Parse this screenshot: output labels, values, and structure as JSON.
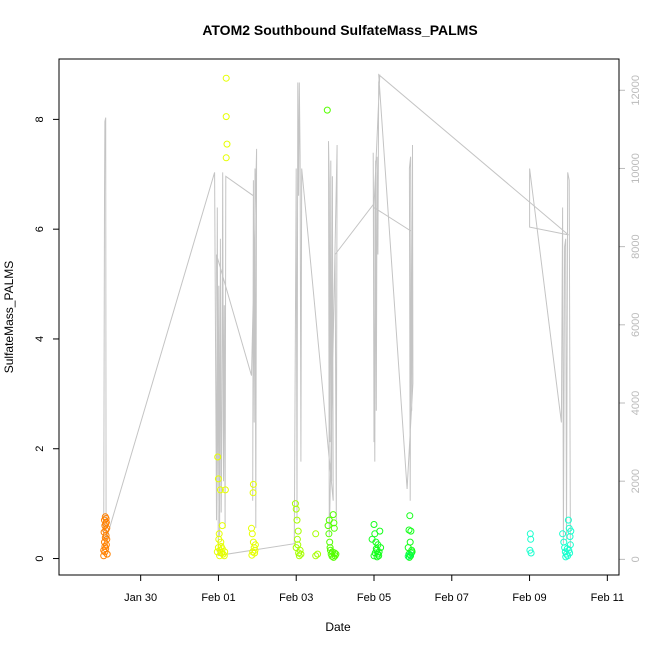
{
  "chart_data": {
    "type": "scatter",
    "title": "ATOM2 Southbound SulfateMass_PALMS",
    "xlabel": "Date",
    "ylabel": "SulfateMass_PALMS",
    "xlim": [
      -2.1,
      12.3
    ],
    "ylim": [
      -0.3,
      9.1
    ],
    "y2lim": [
      -400,
      12800
    ],
    "x_ticks": [
      {
        "value": 0,
        "label": "Jan 30"
      },
      {
        "value": 2,
        "label": "Feb 01"
      },
      {
        "value": 4,
        "label": "Feb 03"
      },
      {
        "value": 6,
        "label": "Feb 05"
      },
      {
        "value": 8,
        "label": "Feb 07"
      },
      {
        "value": 10,
        "label": "Feb 09"
      },
      {
        "value": 12,
        "label": "Feb 11"
      }
    ],
    "y_ticks": [
      0,
      2,
      4,
      6,
      8
    ],
    "y2_ticks": [
      0,
      2000,
      4000,
      6000,
      8000,
      10000,
      12000
    ],
    "point_groups": [
      {
        "color": "#ff8000",
        "points": [
          [
            -0.95,
            0.05
          ],
          [
            -0.92,
            0.12
          ],
          [
            -0.9,
            0.18
          ],
          [
            -0.88,
            0.25
          ],
          [
            -0.93,
            0.3
          ],
          [
            -0.91,
            0.38
          ],
          [
            -0.89,
            0.42
          ],
          [
            -0.94,
            0.48
          ],
          [
            -0.9,
            0.52
          ],
          [
            -0.87,
            0.55
          ],
          [
            -0.92,
            0.6
          ],
          [
            -0.9,
            0.63
          ],
          [
            -0.88,
            0.66
          ],
          [
            -0.93,
            0.7
          ],
          [
            -0.89,
            0.73
          ],
          [
            -0.91,
            0.76
          ],
          [
            -0.86,
            0.08
          ],
          [
            -0.95,
            0.15
          ],
          [
            -0.87,
            0.35
          ],
          [
            -0.92,
            0.22
          ]
        ]
      },
      {
        "color": "#e6ff00",
        "points": [
          [
            1.98,
            1.85
          ],
          [
            2.0,
            1.45
          ],
          [
            2.05,
            1.25
          ],
          [
            2.1,
            0.6
          ],
          [
            2.02,
            0.45
          ],
          [
            2.06,
            0.3
          ],
          [
            2.0,
            0.2
          ],
          [
            2.04,
            0.15
          ],
          [
            2.08,
            0.1
          ],
          [
            2.12,
            0.08
          ],
          [
            1.97,
            0.12
          ],
          [
            2.03,
            0.05
          ],
          [
            2.07,
            0.22
          ],
          [
            2.1,
            0.18
          ],
          [
            2.01,
            0.35
          ],
          [
            2.15,
            0.05
          ],
          [
            2.16,
            0.12
          ],
          [
            2.2,
            7.3
          ],
          [
            2.22,
            7.55
          ],
          [
            2.2,
            8.05
          ],
          [
            2.2,
            8.75
          ],
          [
            2.18,
            1.25
          ],
          [
            2.85,
            0.55
          ],
          [
            2.87,
            0.45
          ],
          [
            2.9,
            0.3
          ],
          [
            2.92,
            0.2
          ],
          [
            2.88,
            0.12
          ],
          [
            2.86,
            0.06
          ],
          [
            2.93,
            0.1
          ],
          [
            2.95,
            0.25
          ],
          [
            2.9,
            1.35
          ],
          [
            2.89,
            1.2
          ],
          [
            2.94,
            0.15
          ]
        ]
      },
      {
        "color": "#a6ff00",
        "points": [
          [
            3.98,
            1.0
          ],
          [
            4.0,
            0.9
          ],
          [
            4.02,
            0.7
          ],
          [
            4.05,
            0.5
          ],
          [
            4.03,
            0.35
          ],
          [
            4.0,
            0.2
          ],
          [
            4.06,
            0.1
          ],
          [
            4.08,
            0.05
          ],
          [
            4.1,
            0.15
          ],
          [
            4.12,
            0.08
          ],
          [
            4.04,
            0.25
          ],
          [
            4.5,
            0.45
          ],
          [
            4.5,
            0.05
          ],
          [
            4.55,
            0.08
          ]
        ]
      },
      {
        "color": "#55ff00",
        "points": [
          [
            4.8,
            8.17
          ],
          [
            4.82,
            0.6
          ],
          [
            4.84,
            0.45
          ],
          [
            4.86,
            0.3
          ],
          [
            4.88,
            0.15
          ],
          [
            4.9,
            0.08
          ],
          [
            4.92,
            0.04
          ],
          [
            4.85,
            0.7
          ],
          [
            4.95,
            0.8
          ],
          [
            4.97,
            0.65
          ],
          [
            4.98,
            0.55
          ],
          [
            4.99,
            0.1
          ],
          [
            5.0,
            0.05
          ],
          [
            5.02,
            0.08
          ],
          [
            4.87,
            0.2
          ],
          [
            4.93,
            0.12
          ],
          [
            4.96,
            0.02
          ]
        ]
      },
      {
        "color": "#14ff1a",
        "points": [
          [
            5.95,
            0.35
          ],
          [
            6.0,
            0.62
          ],
          [
            6.02,
            0.45
          ],
          [
            6.05,
            0.3
          ],
          [
            6.07,
            0.15
          ],
          [
            6.1,
            0.08
          ],
          [
            6.12,
            0.05
          ],
          [
            6.15,
            0.5
          ],
          [
            6.17,
            0.2
          ],
          [
            6.03,
            0.1
          ],
          [
            6.08,
            0.03
          ],
          [
            6.13,
            0.12
          ],
          [
            6.0,
            0.05
          ],
          [
            6.06,
            0.18
          ],
          [
            6.1,
            0.25
          ],
          [
            6.92,
            0.78
          ],
          [
            6.9,
            0.52
          ],
          [
            6.95,
            0.5
          ],
          [
            6.93,
            0.3
          ],
          [
            6.88,
            0.2
          ],
          [
            6.97,
            0.15
          ],
          [
            6.9,
            0.08
          ],
          [
            6.94,
            0.05
          ],
          [
            6.96,
            0.1
          ],
          [
            6.91,
            0.02
          ],
          [
            6.98,
            0.12
          ]
        ]
      },
      {
        "color": "#00ff60",
        "points": [
          [
            6.88,
            0.04
          ],
          [
            6.93,
            0.07
          ]
        ]
      },
      {
        "color": "#1affcf",
        "points": [
          [
            10.02,
            0.45
          ],
          [
            10.03,
            0.35
          ],
          [
            10.01,
            0.15
          ],
          [
            10.04,
            0.1
          ],
          [
            10.85,
            0.45
          ],
          [
            10.88,
            0.3
          ],
          [
            10.9,
            0.2
          ],
          [
            10.92,
            0.12
          ],
          [
            10.95,
            0.08
          ],
          [
            10.98,
            0.05
          ],
          [
            11.0,
            0.7
          ],
          [
            11.02,
            0.55
          ],
          [
            11.04,
            0.4
          ],
          [
            11.05,
            0.25
          ],
          [
            10.97,
            0.18
          ],
          [
            11.03,
            0.1
          ],
          [
            10.93,
            0.03
          ],
          [
            11.01,
            0.15
          ],
          [
            11.06,
            0.5
          ]
        ]
      }
    ],
    "altitude_line": [
      [
        -0.95,
        500
      ],
      [
        -0.93,
        9200
      ],
      [
        -0.92,
        11200
      ],
      [
        -0.9,
        11300
      ],
      [
        -0.89,
        500
      ],
      [
        1.9,
        9900
      ],
      [
        1.95,
        1000
      ],
      [
        1.97,
        9000
      ],
      [
        1.99,
        1500
      ],
      [
        2.01,
        7000
      ],
      [
        2.03,
        600
      ],
      [
        2.05,
        8200
      ],
      [
        2.07,
        1200
      ],
      [
        2.09,
        3600
      ],
      [
        2.11,
        9900
      ],
      [
        2.13,
        2000
      ],
      [
        2.15,
        6500
      ],
      [
        2.17,
        800
      ],
      [
        2.19,
        9800
      ],
      [
        2.9,
        9300
      ],
      [
        2.88,
        1500
      ],
      [
        2.9,
        9700
      ],
      [
        2.92,
        3500
      ],
      [
        2.94,
        10000
      ],
      [
        2.96,
        800
      ],
      [
        2.98,
        10500
      ],
      [
        2.85,
        4700
      ],
      [
        1.95,
        7800
      ],
      [
        2.0,
        100
      ],
      [
        3.95,
        400
      ],
      [
        4.0,
        10000
      ],
      [
        4.02,
        1000
      ],
      [
        4.04,
        12200
      ],
      [
        4.06,
        9300
      ],
      [
        4.08,
        12200
      ],
      [
        4.1,
        10300
      ],
      [
        4.12,
        2500
      ],
      [
        4.14,
        10000
      ],
      [
        4.95,
        1500
      ],
      [
        4.93,
        9800
      ],
      [
        4.91,
        2000
      ],
      [
        4.89,
        10200
      ],
      [
        4.87,
        3000
      ],
      [
        4.85,
        9600
      ],
      [
        4.83,
        10700
      ],
      [
        4.85,
        600
      ],
      [
        5.05,
        10600
      ],
      [
        5.03,
        1000
      ],
      [
        5.0,
        7800
      ],
      [
        6.0,
        9100
      ],
      [
        6.0,
        3000
      ],
      [
        5.98,
        10400
      ],
      [
        6.02,
        2500
      ],
      [
        6.04,
        10200
      ],
      [
        6.06,
        3800
      ],
      [
        6.08,
        10300
      ],
      [
        6.1,
        7800
      ],
      [
        6.12,
        12200
      ],
      [
        6.15,
        12400
      ],
      [
        6.0,
        9000
      ],
      [
        6.95,
        8400
      ],
      [
        6.93,
        1500
      ],
      [
        6.91,
        10000
      ],
      [
        6.94,
        10300
      ],
      [
        6.97,
        3800
      ],
      [
        6.99,
        10600
      ],
      [
        7.0,
        4500
      ],
      [
        6.85,
        1800
      ],
      [
        6.12,
        12400
      ],
      [
        11.0,
        8300
      ],
      [
        10.0,
        8500
      ],
      [
        10.0,
        10000
      ],
      [
        10.82,
        3500
      ],
      [
        10.85,
        9000
      ],
      [
        10.87,
        400
      ],
      [
        10.9,
        8000
      ],
      [
        10.93,
        8200
      ],
      [
        10.95,
        500
      ],
      [
        10.98,
        9900
      ],
      [
        11.02,
        9700
      ],
      [
        11.05,
        300
      ]
    ]
  }
}
